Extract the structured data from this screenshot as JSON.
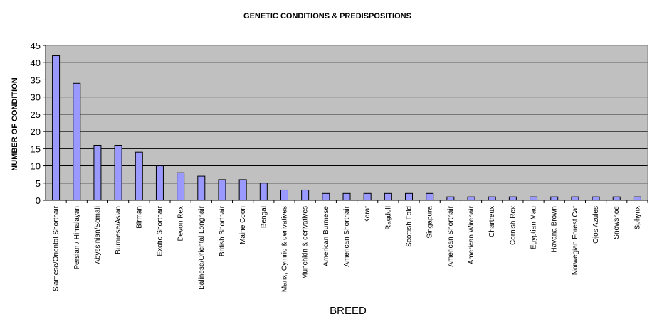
{
  "chart_data": {
    "type": "bar",
    "title": "GENETIC CONDITIONS & PREDISPOSITIONS",
    "xlabel": "BREED",
    "ylabel": "NUMBER OF CONDITION",
    "ylim": [
      0,
      45
    ],
    "yticks": [
      0,
      5,
      10,
      15,
      20,
      25,
      30,
      35,
      40,
      45
    ],
    "grid": true,
    "legend": "none",
    "categories": [
      "Siamese/Oriental Shorthair",
      "Persian / Himalayan",
      "Abyssinian/Somali",
      "Burmese/Asian",
      "Birman",
      "Exotic Shorthair",
      "Devon Rex",
      "Balinese/Oriental Longhair",
      "British Shorthair",
      "Maine Coon",
      "Bengal",
      "Manx, Cymric & derivatives",
      "Munchkin & derivatives",
      "American Burmese",
      "American Shorthair",
      "Korat",
      "Ragdoll",
      "Scottish Fold",
      "Singapura",
      "American Shorthair",
      "American Wirehair",
      "Chartreux",
      "Cornish Rex",
      "Egyptian Mau",
      "Havana Brown",
      "Norwegian Forest Cat",
      "Ojos Azules",
      "Snowshoe",
      "Sphynx"
    ],
    "values": [
      42,
      34,
      16,
      16,
      14,
      10,
      8,
      7,
      6,
      6,
      5,
      3,
      3,
      2,
      2,
      2,
      2,
      2,
      2,
      1,
      1,
      1,
      1,
      1,
      1,
      1,
      1,
      1,
      1
    ],
    "colors": {
      "bar_fill": "#9999ff",
      "bar_stroke": "#000000",
      "plot_background": "#c0c0c0",
      "gridline": "#000000",
      "page_background": "#ffffff"
    }
  }
}
